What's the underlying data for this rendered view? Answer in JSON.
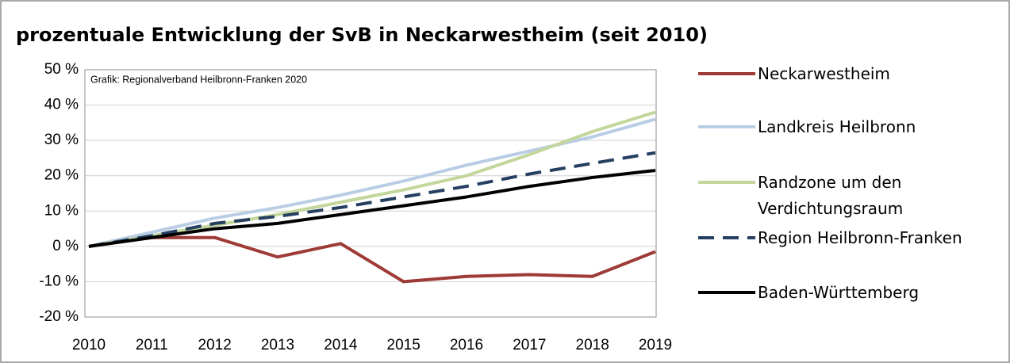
{
  "chart_data": {
    "type": "line",
    "title": "prozentuale Entwicklung der SvB in Neckarwestheim (seit 2010)",
    "annotation": "Grafik: Regionalverband Heilbronn-Franken 2020",
    "categories": [
      "2010",
      "2011",
      "2012",
      "2013",
      "2014",
      "2015",
      "2016",
      "2017",
      "2018",
      "2019"
    ],
    "series": [
      {
        "name": "Neckarwestheim",
        "color": "#9e3b36",
        "dash": false,
        "values": [
          0,
          2.5,
          2.5,
          -3,
          0.8,
          -10,
          -8.5,
          -8,
          -8.5,
          -1.5
        ]
      },
      {
        "name": "Landkreis Heilbronn",
        "color": "#b9cde5",
        "dash": false,
        "values": [
          0,
          4,
          8,
          11,
          14.5,
          18.5,
          23,
          27,
          31,
          36
        ]
      },
      {
        "name": "Randzone um den Verdichtungsraum",
        "color": "#c3d69b",
        "dash": false,
        "values": [
          0,
          3,
          6,
          9,
          12.5,
          16,
          20,
          26,
          32.5,
          38
        ]
      },
      {
        "name": "Region Heilbronn-Franken",
        "color": "#243f60",
        "dash": true,
        "values": [
          0,
          3,
          6.5,
          8.5,
          11,
          14,
          17,
          20.5,
          23.5,
          26.5
        ]
      },
      {
        "name": "Baden-Württemberg",
        "color": "#000000",
        "dash": false,
        "values": [
          0,
          2.5,
          5,
          6.5,
          9,
          11.5,
          14,
          17,
          19.5,
          21.5
        ]
      }
    ],
    "ylim": [
      -20,
      50
    ],
    "yticks": [
      {
        "value": -20,
        "label": "-20 %"
      },
      {
        "value": -10,
        "label": "-10 %"
      },
      {
        "value": 0,
        "label": "0 %"
      },
      {
        "value": 10,
        "label": "10 %"
      },
      {
        "value": 20,
        "label": "20 %"
      },
      {
        "value": 30,
        "label": "30 %"
      },
      {
        "value": 40,
        "label": "40 %"
      },
      {
        "value": 50,
        "label": "50 %"
      }
    ],
    "grid": true,
    "legend": "right"
  }
}
